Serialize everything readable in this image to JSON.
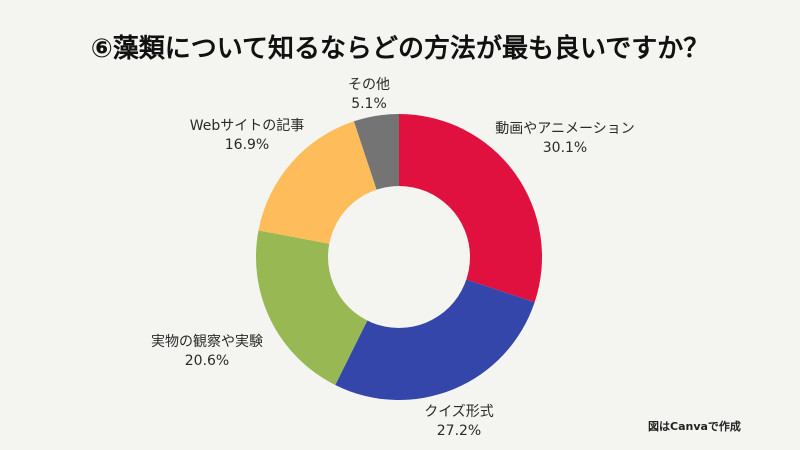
{
  "title": "⑥藻類について知るならどの方法が最も良いですか？",
  "credit": "図はCanvaで作成",
  "chart_data": {
    "type": "pie",
    "subtype": "donut",
    "title": "⑥藻類について知るならどの方法が最も良いですか？",
    "categories": [
      "動画やアニメーション",
      "クイズ形式",
      "実物の観察や実験",
      "Webサイトの記事",
      "その他"
    ],
    "values": [
      30.1,
      27.2,
      20.6,
      16.9,
      5.1
    ],
    "unit": "%",
    "colors": [
      "#E0103F",
      "#3546AB",
      "#97B852",
      "#FFBC5A",
      "#747474"
    ],
    "start_angle": "12 o'clock, clockwise",
    "legend": "none (direct labels)",
    "labels": [
      {
        "name": "動画やアニメーション",
        "pct": "30.1%"
      },
      {
        "name": "クイズ形式",
        "pct": "27.2%"
      },
      {
        "name": "実物の観察や実験",
        "pct": "20.6%"
      },
      {
        "name": "Webサイトの記事",
        "pct": "16.9%"
      },
      {
        "name": "その他",
        "pct": "5.1%"
      }
    ]
  }
}
